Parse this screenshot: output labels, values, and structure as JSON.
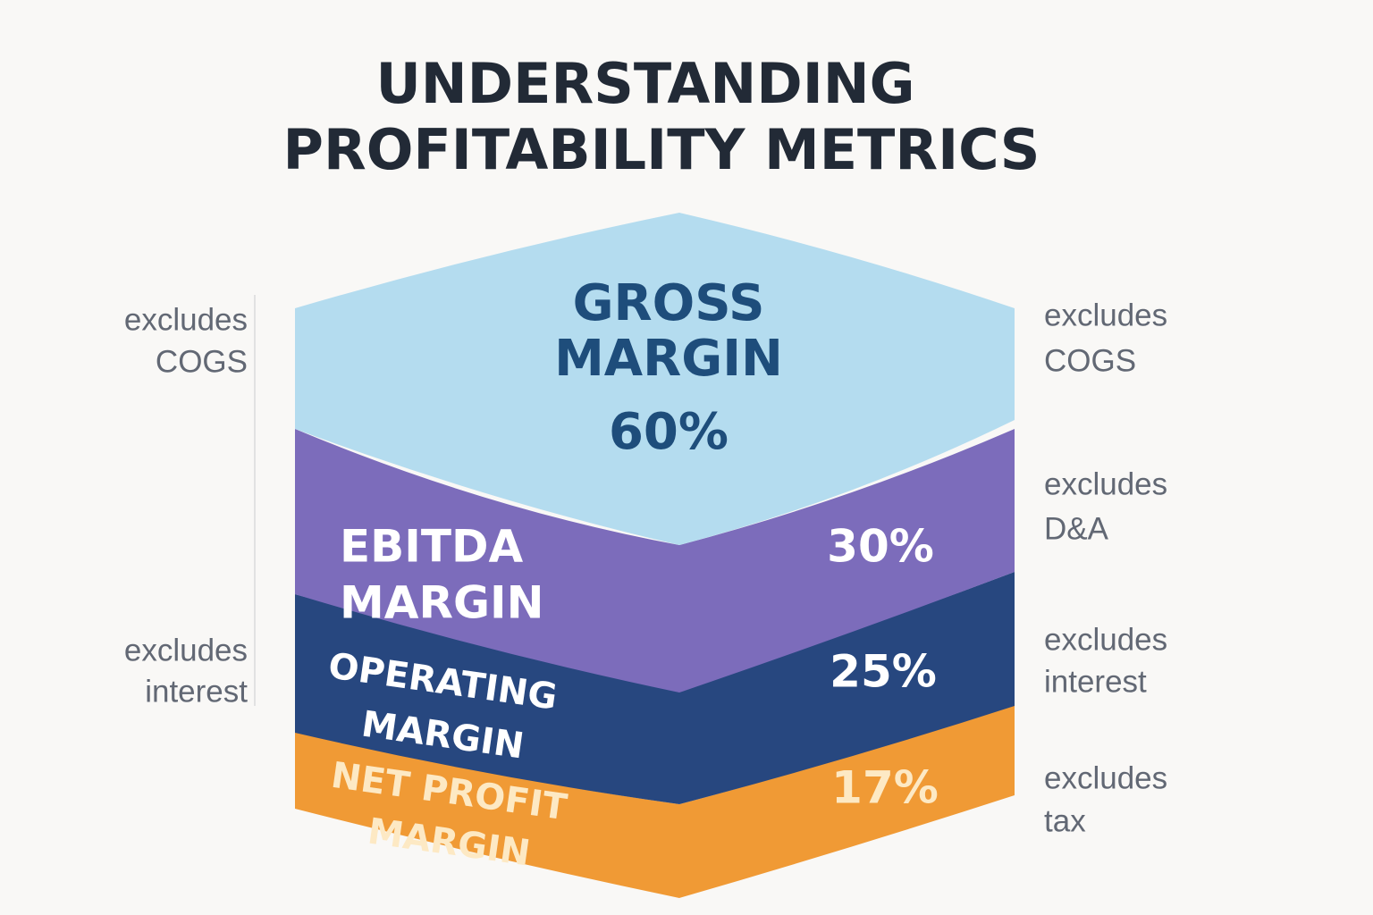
{
  "title": {
    "lines": [
      "UNDERSTANDING",
      "PROFITABILITY METRICS"
    ]
  },
  "layers": [
    {
      "label": [
        "GROSS",
        "MARGIN"
      ],
      "value": "60%"
    },
    {
      "label": [
        "EBITDA",
        "MARGIN"
      ],
      "value": "30%"
    },
    {
      "label": [
        "OPERATING",
        "MARGIN"
      ],
      "value": "25%"
    },
    {
      "label": [
        "NET PROFIT",
        "MARGIN"
      ],
      "value": "17%"
    }
  ],
  "left_notes": [
    {
      "lines": [
        "excludes",
        "COGS"
      ]
    },
    {
      "lines": [
        "excludes",
        "interest"
      ]
    }
  ],
  "right_notes": [
    {
      "lines": [
        "excludes",
        "COGS"
      ]
    },
    {
      "lines": [
        "excludes",
        "D&A"
      ]
    },
    {
      "lines": [
        "excludes",
        "interest"
      ]
    },
    {
      "lines": [
        "excludes",
        "tax"
      ]
    }
  ]
}
